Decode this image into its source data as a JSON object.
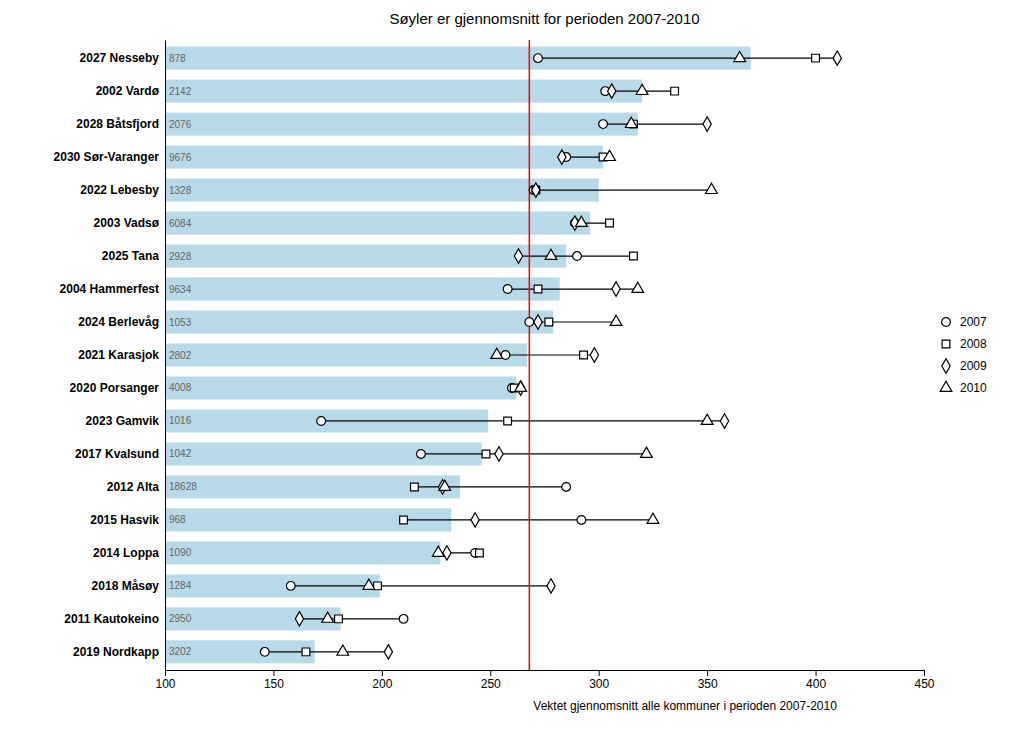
{
  "chart_data": {
    "type": "bar",
    "orientation": "horizontal",
    "title": "Søyler er gjennomsnitt for perioden 2007-2010",
    "categories": [
      "2027 Nesseby",
      "2002 Vardø",
      "2028 Båtsfjord",
      "2030 Sør-Varanger",
      "2022 Lebesby",
      "2003 Vadsø",
      "2025 Tana",
      "2004 Hammerfest",
      "2024 Berlevåg",
      "2021 Karasjok",
      "2020 Porsanger",
      "2023 Gamvik",
      "2017 Kvalsund",
      "2012 Alta",
      "2015 Hasvik",
      "2014 Loppa",
      "2018 Måsøy",
      "2011 Kautokeino",
      "2019 Nordkapp"
    ],
    "series": [
      {
        "type": "bar",
        "color": "#b8d9e8",
        "values": [
          370,
          320,
          318,
          302,
          300,
          296,
          285,
          282,
          279,
          267,
          262,
          249,
          246,
          236,
          232,
          227,
          199,
          181,
          169
        ],
        "population": [
          878,
          2142,
          2076,
          9676,
          1328,
          6084,
          2928,
          9634,
          1053,
          2802,
          4008,
          1016,
          1042,
          18628,
          968,
          1090,
          1284,
          2950,
          3202
        ]
      },
      {
        "name": "2007",
        "type": "scatter",
        "marker": "circle",
        "color": "black",
        "values": [
          272,
          303,
          302,
          285,
          270,
          289,
          290,
          258,
          268,
          257,
          260,
          172,
          218,
          285,
          292,
          243,
          158,
          210,
          146
        ]
      },
      {
        "name": "2008",
        "type": "scatter",
        "marker": "square",
        "color": "black",
        "values": [
          400,
          335,
          316,
          302,
          271,
          305,
          316,
          272,
          277,
          293,
          261,
          258,
          248,
          215,
          210,
          245,
          198,
          180,
          165
        ]
      },
      {
        "name": "2009",
        "type": "scatter",
        "marker": "diamond",
        "color": "black",
        "values": [
          410,
          306,
          350,
          283,
          271,
          289,
          263,
          308,
          272,
          298,
          264,
          358,
          254,
          228,
          243,
          230,
          278,
          162,
          203
        ]
      },
      {
        "name": "2010",
        "type": "scatter",
        "marker": "triangle",
        "color": "black",
        "values": [
          365,
          320,
          315,
          305,
          352,
          292,
          278,
          318,
          308,
          253,
          264,
          350,
          322,
          229,
          325,
          226,
          194,
          175,
          182
        ]
      }
    ],
    "xlim": [
      100,
      450
    ],
    "xticks": [
      100,
      150,
      200,
      250,
      300,
      350,
      400,
      450
    ],
    "annotations": [
      {
        "x": 268,
        "color": "red",
        "text": "Vektet gjennomsnitt alle kommuner i perioden 2007-2010"
      }
    ],
    "grid": false,
    "legend": "right"
  }
}
